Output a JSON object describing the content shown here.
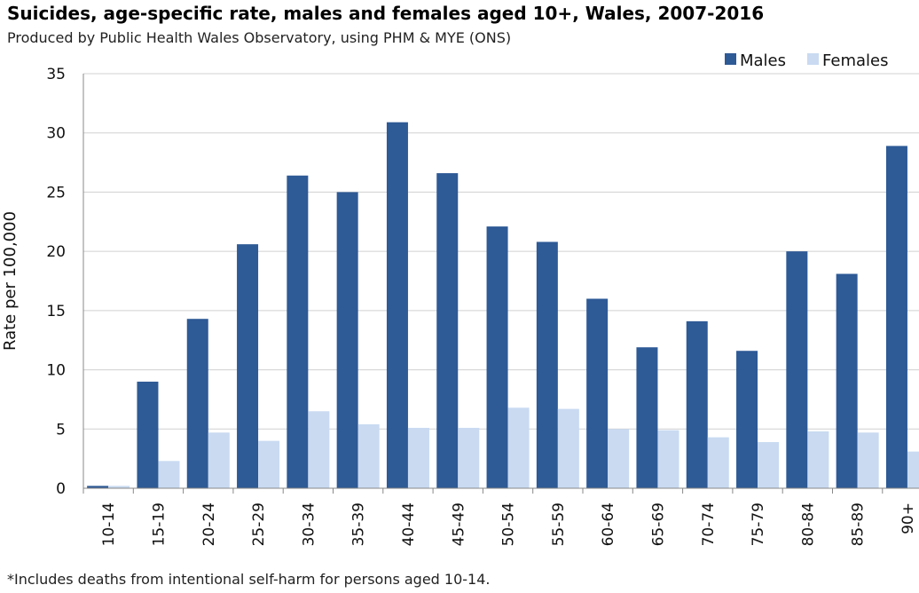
{
  "chart_data": {
    "type": "bar",
    "title": "Suicides, age-specific rate, males and females aged 10+, Wales, 2007-2016",
    "subtitle": "Produced by Public Health Wales Observatory, using PHM & MYE (ONS)",
    "xlabel": "",
    "ylabel": "Rate per 100,000",
    "ylim": [
      0,
      35
    ],
    "yticks": [
      0,
      5,
      10,
      15,
      20,
      25,
      30,
      35
    ],
    "grid": true,
    "legend_position": "top-right",
    "categories": [
      "10-14",
      "15-19",
      "20-24",
      "25-29",
      "30-34",
      "35-39",
      "40-44",
      "45-49",
      "50-54",
      "55-59",
      "60-64",
      "65-69",
      "70-74",
      "75-79",
      "80-84",
      "85-89",
      "90+"
    ],
    "series": [
      {
        "name": "Males",
        "color": "#2e5a96",
        "values": [
          0.2,
          9.0,
          14.3,
          20.6,
          26.4,
          25.0,
          30.9,
          26.6,
          22.1,
          20.8,
          16.0,
          11.9,
          14.1,
          11.6,
          20.0,
          18.1,
          28.9
        ]
      },
      {
        "name": "Females",
        "color": "#c9daf1",
        "values": [
          0.2,
          2.3,
          4.7,
          4.0,
          6.5,
          5.4,
          5.1,
          5.1,
          6.8,
          6.7,
          5.0,
          4.9,
          4.3,
          3.9,
          4.8,
          4.7,
          3.1
        ]
      }
    ],
    "footnote": "*Includes deaths from intentional self-harm for persons aged 10-14."
  }
}
